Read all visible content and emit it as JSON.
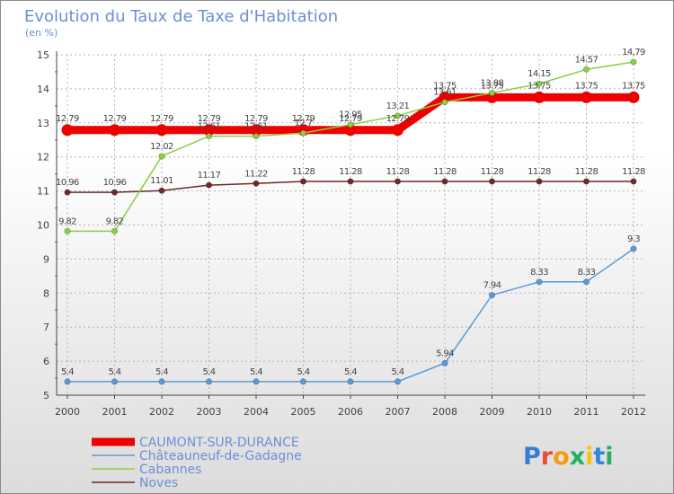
{
  "colors": {
    "title": "#6b8fd6",
    "grid": "#b4b4b4",
    "axis": "#444444"
  },
  "chart_data": {
    "type": "line",
    "title": "Evolution du Taux de Taxe d'Habitation",
    "subtitle": "(en %)",
    "xlabel": "",
    "ylabel": "",
    "ylim": [
      5,
      15
    ],
    "yticks": [
      5,
      6,
      7,
      8,
      9,
      10,
      11,
      12,
      13,
      14,
      15
    ],
    "grid": true,
    "legend_position": "bottom-left",
    "x": [
      "2000",
      "2001",
      "2002",
      "2003",
      "2004",
      "2005",
      "2006",
      "2007",
      "2008",
      "2009",
      "2010",
      "2011",
      "2012"
    ],
    "series": [
      {
        "name": "Noves",
        "color": "#6e2a2a",
        "style": "thin-marker",
        "values": [
          10.96,
          10.96,
          11.01,
          11.17,
          11.22,
          11.28,
          11.28,
          11.28,
          11.28,
          11.28,
          11.28,
          11.28,
          11.28
        ],
        "labels": [
          "10.96",
          "10.96",
          "11.01",
          "11.17",
          "11.22",
          "11.28",
          "11.28",
          "11.28",
          "11.28",
          "11.28",
          "11.28",
          "11.28",
          "11.28"
        ]
      },
      {
        "name": "Châteauneuf-de-Gadagne",
        "color": "#5b9bd5",
        "style": "thin-marker",
        "values": [
          5.4,
          5.4,
          5.4,
          5.4,
          5.4,
          5.4,
          5.4,
          5.4,
          5.94,
          7.94,
          8.33,
          8.33,
          9.3
        ],
        "labels": [
          "5.4",
          "5.4",
          "5.4",
          "5.4",
          "5.4",
          "5.4",
          "5.4",
          "5.4",
          "5.94",
          "7.94",
          "8.33",
          "8.33",
          "9.3"
        ]
      },
      {
        "name": "CAUMONT-SUR-DURANCE",
        "color": "#ee0000",
        "style": "thick",
        "values": [
          12.79,
          12.79,
          12.79,
          12.79,
          12.79,
          12.79,
          12.79,
          12.79,
          13.75,
          13.75,
          13.75,
          13.75,
          13.75
        ],
        "labels": [
          "12.79",
          "12.79",
          "12.79",
          "12.79",
          "12.79",
          "12.79",
          "12.79",
          "12.79",
          "13.75",
          "13.75",
          "13.75",
          "13.75",
          "13.75"
        ]
      },
      {
        "name": "Cabannes",
        "color": "#88d040",
        "style": "thin-marker",
        "values": [
          9.82,
          9.82,
          12.02,
          12.61,
          12.61,
          12.7,
          12.95,
          13.21,
          13.61,
          13.88,
          14.15,
          14.57,
          14.79
        ],
        "labels": [
          "9.82",
          "9.82",
          "12.02",
          "12.61",
          "12.61",
          "12.7",
          "12.95",
          "13.21",
          "13.61",
          "13.88",
          "14.15",
          "14.57",
          "14.79"
        ]
      }
    ],
    "legend": [
      "CAUMONT-SUR-DURANCE",
      "Châteauneuf-de-Gadagne",
      "Cabannes",
      "Noves"
    ]
  },
  "logo": {
    "text": "Proxiti"
  }
}
